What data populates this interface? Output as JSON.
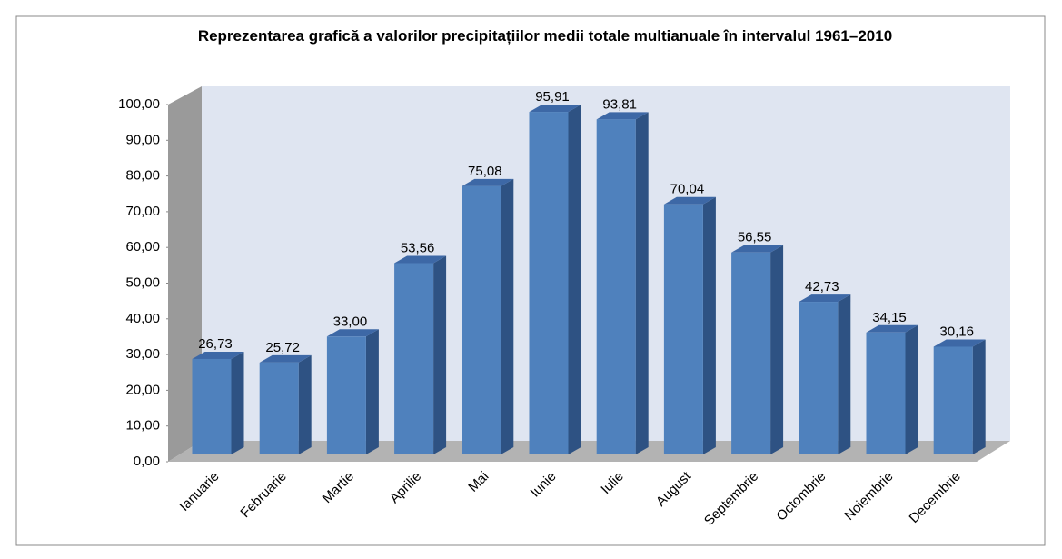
{
  "chart_data": {
    "type": "bar3d",
    "title": "Reprezentarea grafică a valorilor precipitațiilor medii totale multianuale în intervalul 1961–2010",
    "categories": [
      "Ianuarie",
      "Februarie",
      "Martie",
      "Aprilie",
      "Mai",
      "Iunie",
      "Iulie",
      "August",
      "Septembrie",
      "Octombrie",
      "Noiembrie",
      "Decembrie"
    ],
    "values": [
      26.73,
      25.72,
      33.0,
      53.56,
      75.08,
      95.91,
      93.81,
      70.04,
      56.55,
      42.73,
      34.15,
      30.16
    ],
    "value_labels": [
      "26,73",
      "25,72",
      "33,00",
      "53,56",
      "75,08",
      "95,91",
      "93,81",
      "70,04",
      "56,55",
      "42,73",
      "34,15",
      "30,16"
    ],
    "color": "#4f81bd",
    "ylim": [
      0,
      100
    ],
    "yticks": [
      {
        "value": 0,
        "label": "0,00"
      },
      {
        "value": 10,
        "label": "10,00"
      },
      {
        "value": 20,
        "label": "20,00"
      },
      {
        "value": 30,
        "label": "30,00"
      },
      {
        "value": 40,
        "label": "40,00"
      },
      {
        "value": 50,
        "label": "50,00"
      },
      {
        "value": 60,
        "label": "60,00"
      },
      {
        "value": 70,
        "label": "70,00"
      },
      {
        "value": 80,
        "label": "80,00"
      },
      {
        "value": 90,
        "label": "90,00"
      },
      {
        "value": 100,
        "label": "100,00"
      }
    ],
    "grid": false
  }
}
